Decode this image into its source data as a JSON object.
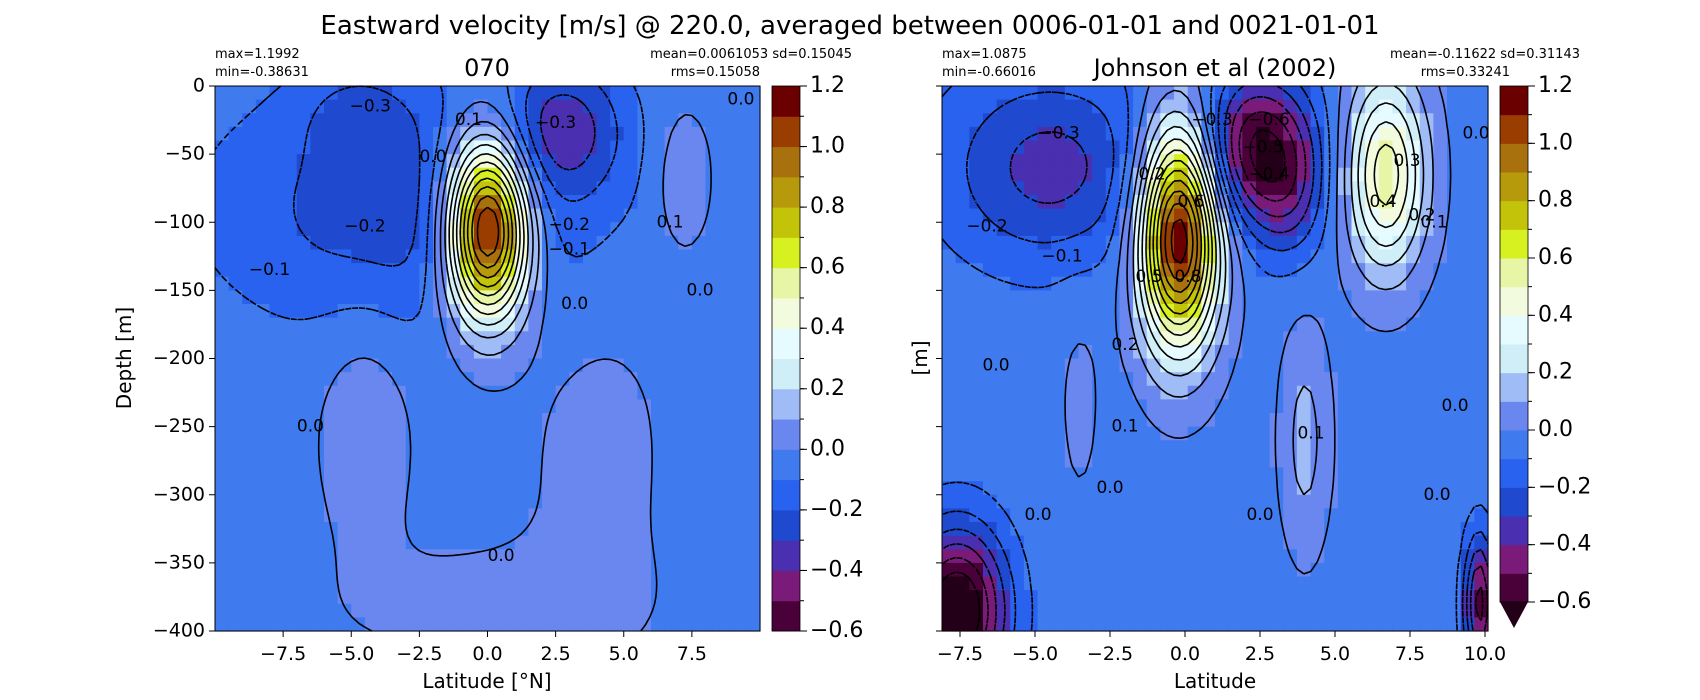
{
  "figure": {
    "suptitle": "Eastward velocity [m/s] @ 220.0, averaged between 0006-01-01 and 0021-01-01"
  },
  "colorbar": {
    "levels": [
      -0.6,
      -0.5,
      -0.4,
      -0.3,
      -0.2,
      -0.1,
      0.0,
      0.1,
      0.2,
      0.3,
      0.4,
      0.5,
      0.6,
      0.7,
      0.8,
      0.9,
      1.0,
      1.1,
      1.2
    ],
    "colors": [
      "#4a0038",
      "#7a1b7a",
      "#4a2fb0",
      "#1f4ad0",
      "#2a62f0",
      "#3f7aef",
      "#6a86ef",
      "#9fbcf7",
      "#cfeef7",
      "#e6fbff",
      "#f3fbde",
      "#e6f6a6",
      "#d6f020",
      "#c3c40a",
      "#b79a0c",
      "#a9700e",
      "#9a3d00",
      "#6b0000"
    ],
    "tick_labels": [
      "1.2",
      "1.0",
      "0.8",
      "0.6",
      "0.4",
      "0.2",
      "0.0",
      "−0.2",
      "−0.4",
      "−0.6"
    ],
    "extend_min_color": "#240018"
  },
  "chart_data": [
    {
      "type": "heatmap",
      "title": "070",
      "stats": {
        "max": "max=1.1992",
        "min": "min=-0.38631",
        "mean_sd": "mean=0.0061053 sd=0.15045",
        "rms": "rms=0.15058"
      },
      "xlabel": "Latitude [°N]",
      "ylabel": "Depth [m]",
      "xlim": [
        -10,
        10
      ],
      "ylim": [
        -400,
        0
      ],
      "xticks": [
        -7.5,
        -5.0,
        -2.5,
        0.0,
        2.5,
        5.0,
        7.5
      ],
      "xtick_labels": [
        "−7.5",
        "−5.0",
        "−2.5",
        "0.0",
        "2.5",
        "5.0",
        "7.5"
      ],
      "yticks": [
        0,
        -50,
        -100,
        -150,
        -200,
        -250,
        -300,
        -350,
        -400
      ],
      "ytick_labels": [
        "0",
        "−50",
        "−100",
        "−150",
        "−200",
        "−250",
        "−300",
        "−350",
        "−400"
      ],
      "features": [
        {
          "lat": -3.0,
          "depth": -90,
          "wlat": 7.0,
          "wdep": 90,
          "amp": -0.24
        },
        {
          "lat": 2.8,
          "depth": -30,
          "wlat": 2.2,
          "wdep": 50,
          "amp": -0.28
        },
        {
          "lat": -4.8,
          "depth": -20,
          "wlat": 2.0,
          "wdep": 35,
          "amp": -0.12
        },
        {
          "lat": 0.0,
          "depth": -105,
          "wlat": 1.5,
          "wdep": 65,
          "amp": 1.32
        },
        {
          "lat": 7.2,
          "depth": -70,
          "wlat": 1.0,
          "wdep": 50,
          "amp": 0.13
        },
        {
          "lat": -4.5,
          "depth": -240,
          "wlat": 1.7,
          "wdep": 90,
          "amp": 0.1
        },
        {
          "lat": 4.0,
          "depth": -260,
          "wlat": 2.5,
          "wdep": 130,
          "amp": 0.06
        },
        {
          "lat": 0.0,
          "depth": -380,
          "wlat": 6.0,
          "wdep": 50,
          "amp": 0.05
        }
      ],
      "base_value": -0.03,
      "contour_levels": [
        -0.3,
        -0.2,
        -0.1,
        0.0,
        0.1,
        0.2,
        0.3,
        0.4,
        0.5,
        0.6,
        0.7,
        0.8,
        0.9,
        1.0,
        1.1
      ],
      "contour_labels": [
        {
          "text": "-0.3",
          "lat": -4.3,
          "depth": -15
        },
        {
          "text": "-0.3",
          "lat": 2.5,
          "depth": -27
        },
        {
          "text": "-0.2",
          "lat": -4.5,
          "depth": -103
        },
        {
          "text": "-0.2",
          "lat": 3.0,
          "depth": -102
        },
        {
          "text": "-0.1",
          "lat": 3.0,
          "depth": -120
        },
        {
          "text": "-0.1",
          "lat": -8.0,
          "depth": -135
        },
        {
          "text": "0.0",
          "lat": -2.0,
          "depth": -52
        },
        {
          "text": "0.1",
          "lat": -0.7,
          "depth": -25
        },
        {
          "text": "0.0",
          "lat": 3.2,
          "depth": -160
        },
        {
          "text": "0.0",
          "lat": 7.8,
          "depth": -150
        },
        {
          "text": "0.1",
          "lat": 6.7,
          "depth": -100
        },
        {
          "text": "0.0",
          "lat": -6.5,
          "depth": -250
        },
        {
          "text": "0.0",
          "lat": 0.5,
          "depth": -345
        },
        {
          "text": "0.0",
          "lat": 9.3,
          "depth": -10
        }
      ]
    },
    {
      "type": "heatmap",
      "title": "Johnson et al (2002)",
      "stats": {
        "max": "max=1.0875",
        "min": "min=-0.66016",
        "mean_sd": "mean=-0.11622 sd=0.31143",
        "rms": "rms=0.33241"
      },
      "xlabel": "Latitude",
      "ylabel": "[m]",
      "xlim": [
        -8.1,
        10.1
      ],
      "ylim": [
        -400,
        0
      ],
      "xticks": [
        -7.5,
        -5.0,
        -2.5,
        0.0,
        2.5,
        5.0,
        7.5,
        10.0
      ],
      "xtick_labels": [
        "−7.5",
        "−5.0",
        "−2.5",
        "0.0",
        "2.5",
        "5.0",
        "7.5",
        "10.0"
      ],
      "features": [
        {
          "lat": -4.5,
          "depth": -60,
          "wlat": 3.5,
          "wdep": 70,
          "amp": -0.3
        },
        {
          "lat": 2.4,
          "depth": -45,
          "wlat": 1.8,
          "wdep": 55,
          "amp": -0.55
        },
        {
          "lat": 3.5,
          "depth": -80,
          "wlat": 1.2,
          "wdep": 50,
          "amp": -0.2
        },
        {
          "lat": -0.2,
          "depth": -110,
          "wlat": 1.3,
          "wdep": 80,
          "amp": 1.25
        },
        {
          "lat": 6.7,
          "depth": -65,
          "wlat": 1.3,
          "wdep": 70,
          "amp": 0.6
        },
        {
          "lat": 4.0,
          "depth": -260,
          "wlat": 0.8,
          "wdep": 80,
          "amp": 0.18
        },
        {
          "lat": -3.5,
          "depth": -230,
          "wlat": 0.8,
          "wdep": 90,
          "amp": 0.06
        },
        {
          "lat": -7.6,
          "depth": -385,
          "wlat": 1.6,
          "wdep": 60,
          "amp": -0.7
        },
        {
          "lat": 9.8,
          "depth": -380,
          "wlat": 0.5,
          "wdep": 50,
          "amp": -0.5
        }
      ],
      "base_value": -0.04,
      "contour_levels": [
        -0.6,
        -0.5,
        -0.4,
        -0.3,
        -0.2,
        -0.1,
        0.0,
        0.1,
        0.2,
        0.3,
        0.4,
        0.5,
        0.6,
        0.7,
        0.8,
        0.9,
        1.0,
        1.1
      ],
      "contour_labels": [
        {
          "text": "-0.3",
          "lat": -4.2,
          "depth": -35
        },
        {
          "text": "-0.6",
          "lat": 2.8,
          "depth": -25
        },
        {
          "text": "-0.5",
          "lat": 2.6,
          "depth": -45
        },
        {
          "text": "-0.4",
          "lat": 2.8,
          "depth": -65
        },
        {
          "text": "-0.3",
          "lat": 0.9,
          "depth": -25
        },
        {
          "text": "-0.2",
          "lat": -6.6,
          "depth": -103
        },
        {
          "text": "-0.1",
          "lat": -4.1,
          "depth": -125
        },
        {
          "text": "0.2",
          "lat": -1.1,
          "depth": -65
        },
        {
          "text": "0.6",
          "lat": 0.2,
          "depth": -85
        },
        {
          "text": "0.8",
          "lat": 0.1,
          "depth": -140
        },
        {
          "text": "0.5",
          "lat": -1.2,
          "depth": -140
        },
        {
          "text": "0.2",
          "lat": -2.0,
          "depth": -190
        },
        {
          "text": "0.4",
          "lat": 6.6,
          "depth": -85
        },
        {
          "text": "0.3",
          "lat": 7.4,
          "depth": -55
        },
        {
          "text": "0.2",
          "lat": 7.9,
          "depth": -95
        },
        {
          "text": "0.1",
          "lat": 8.3,
          "depth": -100
        },
        {
          "text": "0.0",
          "lat": 9.7,
          "depth": -35
        },
        {
          "text": "0.0",
          "lat": -6.3,
          "depth": -205
        },
        {
          "text": "0.0",
          "lat": 9.0,
          "depth": -235
        },
        {
          "text": "0.1",
          "lat": -2.0,
          "depth": -250
        },
        {
          "text": "0.1",
          "lat": 4.2,
          "depth": -255
        },
        {
          "text": "0.0",
          "lat": -2.5,
          "depth": -295
        },
        {
          "text": "0.0",
          "lat": -4.9,
          "depth": -315
        },
        {
          "text": "0.0",
          "lat": 2.5,
          "depth": -315
        },
        {
          "text": "0.0",
          "lat": 8.4,
          "depth": -300
        }
      ]
    }
  ]
}
